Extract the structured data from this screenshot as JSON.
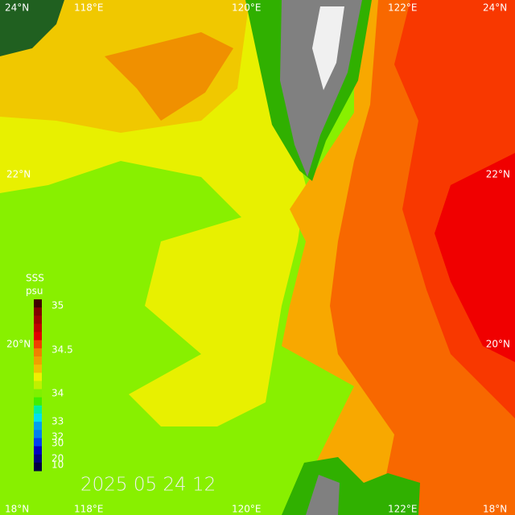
{
  "map": {
    "top_labels": [
      "24°N",
      "118°E",
      "120°E",
      "122°E",
      "24°N"
    ],
    "bottom_labels": [
      "18°N",
      "118°E",
      "120°E",
      "122°E",
      "18°N"
    ],
    "left_labels": [
      "22°N",
      "20°N"
    ],
    "right_labels": [
      "22°N",
      "20°N"
    ],
    "legend": {
      "title": "SSS",
      "unit": "psu",
      "ticks": [
        "35",
        "34.5",
        "34",
        "33",
        "32",
        "30",
        "20",
        "10"
      ]
    },
    "timestamp": "2025 05 24 12"
  }
}
